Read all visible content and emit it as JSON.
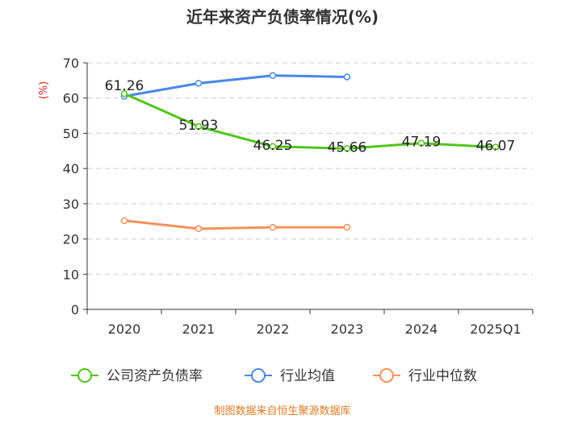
{
  "chart_data": {
    "type": "line",
    "title": "近年来资产负债率情况(%)",
    "ylabel": "(%)",
    "xlabel": "",
    "ylim": [
      0,
      70
    ],
    "yticks": [
      0,
      10,
      20,
      30,
      40,
      50,
      60,
      70
    ],
    "grid": "horizontal-dashed",
    "categories": [
      "2020",
      "2021",
      "2022",
      "2023",
      "2024",
      "2025Q1"
    ],
    "series": [
      {
        "name": "公司资产负债率",
        "color": "#52c41a",
        "values": [
          61.26,
          51.93,
          46.25,
          45.66,
          47.19,
          46.07
        ],
        "labels": [
          "61.26",
          "51.93",
          "46.25",
          "45.66",
          "47.19",
          "46.07"
        ],
        "show_labels": true
      },
      {
        "name": "行业均值",
        "color": "#4a86e8",
        "values": [
          60.5,
          64.2,
          66.4,
          66.0,
          null,
          null
        ],
        "show_labels": false
      },
      {
        "name": "行业中位数",
        "color": "#f5915a",
        "values": [
          25.2,
          22.9,
          23.3,
          23.3,
          null,
          null
        ],
        "show_labels": false
      }
    ],
    "legend_position": "bottom",
    "source": "制图数据来自恒生聚源数据库",
    "colors": {
      "axis": "#333333",
      "grid": "#cccccc",
      "ylabel": "#e02020",
      "source": "#e07b24"
    }
  }
}
